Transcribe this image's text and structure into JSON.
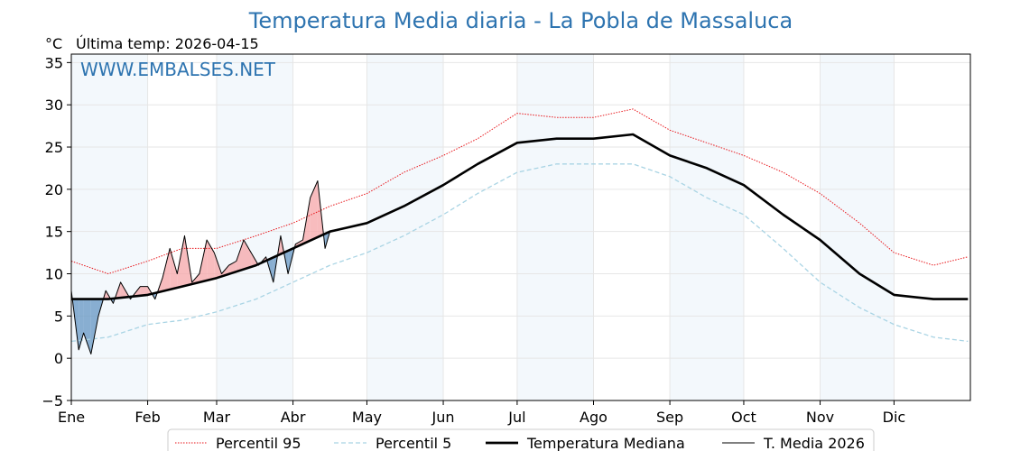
{
  "chart_data": {
    "type": "line",
    "title": "Temperatura Media diaria - La Pobla de Massaluca",
    "unit": "°C",
    "last_temp_label": "Última temp: 2026-04-15",
    "watermark": "WWW.EMBALSES.NET",
    "ylim": [
      -5,
      36
    ],
    "yticks": [
      "35",
      "30",
      "25",
      "20",
      "15",
      "10",
      "5",
      "0",
      "−5"
    ],
    "months": [
      "Ene",
      "Feb",
      "Mar",
      "Abr",
      "May",
      "Jun",
      "Jul",
      "Ago",
      "Sep",
      "Oct",
      "Nov",
      "Dic"
    ],
    "month_start_days": [
      0,
      31,
      59,
      90,
      120,
      151,
      181,
      212,
      243,
      273,
      304,
      334,
      365
    ],
    "grid": true,
    "legend_position": "bottom",
    "series": [
      {
        "name": "Percentil 95",
        "color": "#e8161b",
        "style": "dotted",
        "days": [
          0,
          15,
          31,
          45,
          59,
          75,
          90,
          105,
          120,
          135,
          151,
          165,
          181,
          197,
          212,
          228,
          243,
          258,
          273,
          289,
          304,
          320,
          334,
          350,
          364
        ],
        "values": [
          11.5,
          10,
          11.5,
          13,
          13,
          14.5,
          16,
          18,
          19.5,
          22,
          24,
          26,
          29,
          28.5,
          28.5,
          29.5,
          27,
          25.5,
          24,
          22,
          19.5,
          16,
          12.5,
          11,
          12
        ]
      },
      {
        "name": "Percentil 5",
        "color": "#a9d4e4",
        "style": "dashed",
        "days": [
          0,
          15,
          31,
          45,
          59,
          75,
          90,
          105,
          120,
          135,
          151,
          165,
          181,
          197,
          212,
          228,
          243,
          258,
          273,
          289,
          304,
          320,
          334,
          350,
          364
        ],
        "values": [
          2,
          2.5,
          4,
          4.5,
          5.5,
          7,
          9,
          11,
          12.5,
          14.5,
          17,
          19.5,
          22,
          23,
          23,
          23,
          21.5,
          19,
          17,
          13,
          9,
          6,
          4,
          2.5,
          2
        ]
      },
      {
        "name": "Temperatura Mediana",
        "color": "#000000",
        "style": "solid-thick",
        "days": [
          0,
          15,
          31,
          45,
          59,
          75,
          90,
          105,
          120,
          135,
          151,
          165,
          181,
          197,
          212,
          228,
          243,
          258,
          273,
          289,
          304,
          320,
          334,
          350,
          364
        ],
        "values": [
          7,
          7,
          7.5,
          8.5,
          9.5,
          11,
          13,
          15,
          16,
          18,
          20.5,
          23,
          25.5,
          26,
          26,
          26.5,
          24,
          22.5,
          20.5,
          17,
          14,
          10,
          7.5,
          7,
          7
        ]
      },
      {
        "name": "T. Media 2026",
        "color": "#000000",
        "style": "solid-thin",
        "days": [
          0,
          3,
          5,
          8,
          11,
          14,
          17,
          20,
          24,
          28,
          31,
          34,
          37,
          40,
          43,
          46,
          49,
          52,
          55,
          58,
          61,
          64,
          67,
          70,
          73,
          76,
          79,
          82,
          85,
          88,
          91,
          94,
          97,
          100,
          103,
          105
        ],
        "values": [
          8,
          1,
          3,
          0.5,
          5,
          8,
          6.5,
          9,
          7,
          8.5,
          8.5,
          7,
          9.5,
          13,
          10,
          14.5,
          9,
          10,
          14,
          12.5,
          10,
          11,
          11.5,
          14,
          12.5,
          11,
          12,
          9,
          14.5,
          10,
          13.5,
          14,
          19,
          21,
          13,
          15
        ]
      }
    ]
  }
}
